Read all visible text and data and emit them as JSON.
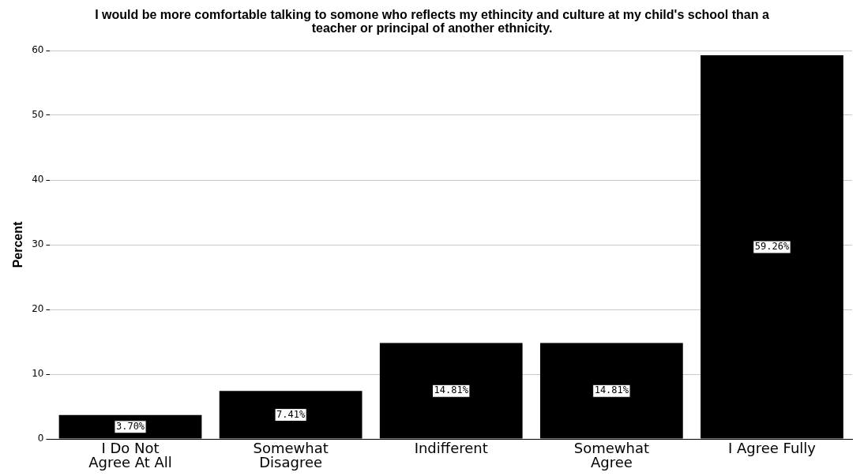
{
  "chart_data": {
    "type": "bar",
    "title": "I would be more comfortable talking to somone who reflects my ethincity and culture at my child's school than a teacher or principal of another ethnicity.",
    "ylabel": "Percent",
    "categories": [
      "I Do Not Agree At All",
      "Somewhat Disagree",
      "Indifferent",
      "Somewhat Agree",
      "I Agree Fully"
    ],
    "values": [
      3.7,
      7.41,
      14.81,
      14.81,
      59.26
    ],
    "value_labels": [
      "3.70%",
      "7.41%",
      "14.81%",
      "14.81%",
      "59.26%"
    ],
    "color": "#000000",
    "ylim": [
      0,
      60
    ],
    "yticks": [
      0,
      10,
      20,
      30,
      40,
      50,
      60
    ],
    "grid": "y",
    "legend": false
  }
}
